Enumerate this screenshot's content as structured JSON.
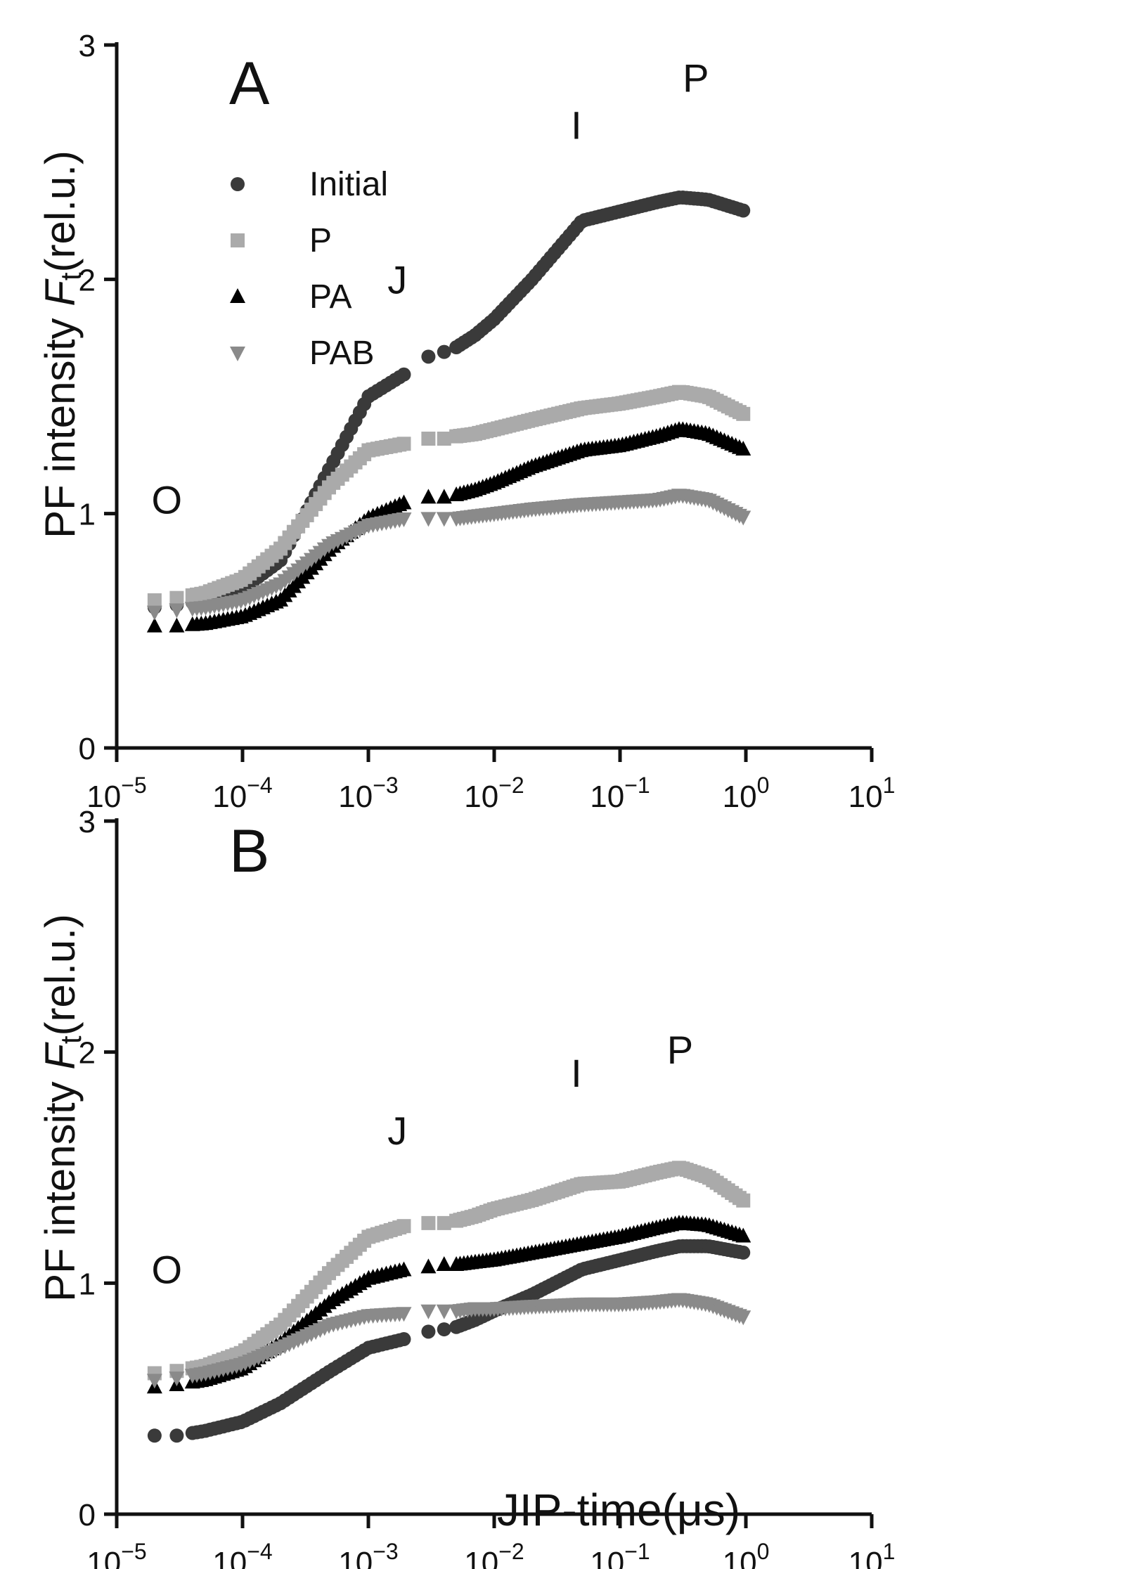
{
  "chart_data": [
    {
      "type": "scatter",
      "panel_label": "A",
      "xscale": "log",
      "xlim": [
        1e-05,
        10
      ],
      "ylim": [
        0,
        3
      ],
      "yticks": [
        "0",
        "1",
        "2",
        "3"
      ],
      "xtick_exponents": [
        "-5",
        "-4",
        "-3",
        "-2",
        "-1",
        "0",
        "1"
      ],
      "xtick_base": "10",
      "ylabel_parts": [
        "PF intensity ",
        "F",
        "t",
        "(rel.u.)"
      ],
      "legend": {
        "placement": "top-left",
        "entries": [
          "Initial",
          "P",
          "PA",
          "PAB"
        ]
      },
      "phase_labels": [
        {
          "text": "O",
          "x": 2.5e-05,
          "y": 1.0
        },
        {
          "text": "J",
          "x": 0.0017,
          "y": 1.94
        },
        {
          "text": "I",
          "x": 0.045,
          "y": 2.6
        },
        {
          "text": "P",
          "x": 0.4,
          "y": 2.8
        }
      ],
      "x": [
        2e-05,
        3e-05,
        5e-05,
        0.0001,
        0.0002,
        0.0005,
        0.001,
        0.002,
        0.003,
        0.004,
        0.005,
        0.007,
        0.01,
        0.02,
        0.05,
        0.1,
        0.2,
        0.3,
        0.5,
        1.0
      ],
      "series": [
        {
          "name": "Initial",
          "marker": "circle",
          "color": "#3a3a3a",
          "values": [
            0.6,
            0.61,
            0.63,
            0.68,
            0.8,
            1.2,
            1.5,
            1.6,
            1.67,
            1.69,
            1.71,
            1.76,
            1.83,
            2.0,
            2.25,
            2.29,
            2.33,
            2.35,
            2.34,
            2.29
          ]
        },
        {
          "name": "P",
          "marker": "square",
          "color": "#aaaaaa",
          "values": [
            0.63,
            0.64,
            0.66,
            0.72,
            0.85,
            1.12,
            1.27,
            1.3,
            1.32,
            1.32,
            1.33,
            1.34,
            1.36,
            1.4,
            1.45,
            1.47,
            1.5,
            1.52,
            1.5,
            1.42
          ]
        },
        {
          "name": "PA",
          "marker": "triangle-up",
          "color": "#000000",
          "values": [
            0.52,
            0.52,
            0.53,
            0.56,
            0.63,
            0.85,
            0.98,
            1.05,
            1.07,
            1.07,
            1.08,
            1.1,
            1.13,
            1.2,
            1.27,
            1.29,
            1.33,
            1.36,
            1.34,
            1.27
          ]
        },
        {
          "name": "PAB",
          "marker": "triangle-down",
          "color": "#8a8a8a",
          "values": [
            0.58,
            0.59,
            0.6,
            0.63,
            0.7,
            0.87,
            0.95,
            0.98,
            0.98,
            0.98,
            0.98,
            0.99,
            1.0,
            1.02,
            1.04,
            1.05,
            1.06,
            1.08,
            1.06,
            0.98
          ]
        }
      ]
    },
    {
      "type": "scatter",
      "panel_label": "B",
      "xscale": "log",
      "xlim": [
        1e-05,
        10
      ],
      "ylim": [
        0,
        3
      ],
      "yticks": [
        "0",
        "1",
        "2",
        "3"
      ],
      "xtick_exponents": [
        "-5",
        "-4",
        "-3",
        "-2",
        "-1",
        "0",
        "1"
      ],
      "xtick_base": "10",
      "ylabel_parts": [
        "PF intensity ",
        "F",
        "t",
        "(rel.u.)"
      ],
      "xlabel": "JIP-time(μs)",
      "phase_labels": [
        {
          "text": "O",
          "x": 2.5e-05,
          "y": 1.0
        },
        {
          "text": "J",
          "x": 0.0017,
          "y": 1.6
        },
        {
          "text": "I",
          "x": 0.045,
          "y": 1.85
        },
        {
          "text": "P",
          "x": 0.3,
          "y": 1.95
        }
      ],
      "x": [
        2e-05,
        3e-05,
        5e-05,
        0.0001,
        0.0002,
        0.0005,
        0.001,
        0.002,
        0.003,
        0.004,
        0.005,
        0.007,
        0.01,
        0.02,
        0.05,
        0.1,
        0.2,
        0.3,
        0.5,
        1.0
      ],
      "series": [
        {
          "name": "Initial",
          "marker": "circle",
          "color": "#3a3a3a",
          "values": [
            0.34,
            0.34,
            0.36,
            0.4,
            0.48,
            0.62,
            0.72,
            0.76,
            0.79,
            0.8,
            0.81,
            0.84,
            0.88,
            0.95,
            1.06,
            1.1,
            1.14,
            1.16,
            1.16,
            1.13
          ]
        },
        {
          "name": "P",
          "marker": "square",
          "color": "#aaaaaa",
          "values": [
            0.61,
            0.62,
            0.64,
            0.7,
            0.82,
            1.05,
            1.2,
            1.25,
            1.26,
            1.26,
            1.27,
            1.29,
            1.32,
            1.36,
            1.43,
            1.44,
            1.48,
            1.5,
            1.46,
            1.35
          ]
        },
        {
          "name": "PA",
          "marker": "triangle-up",
          "color": "#000000",
          "values": [
            0.55,
            0.56,
            0.58,
            0.63,
            0.74,
            0.92,
            1.02,
            1.06,
            1.07,
            1.08,
            1.08,
            1.09,
            1.1,
            1.13,
            1.17,
            1.2,
            1.24,
            1.26,
            1.25,
            1.2
          ]
        },
        {
          "name": "PAB",
          "marker": "triangle-down",
          "color": "#8a8a8a",
          "values": [
            0.58,
            0.59,
            0.61,
            0.65,
            0.72,
            0.82,
            0.86,
            0.87,
            0.88,
            0.88,
            0.88,
            0.89,
            0.89,
            0.9,
            0.91,
            0.91,
            0.92,
            0.93,
            0.91,
            0.85
          ]
        }
      ]
    }
  ]
}
